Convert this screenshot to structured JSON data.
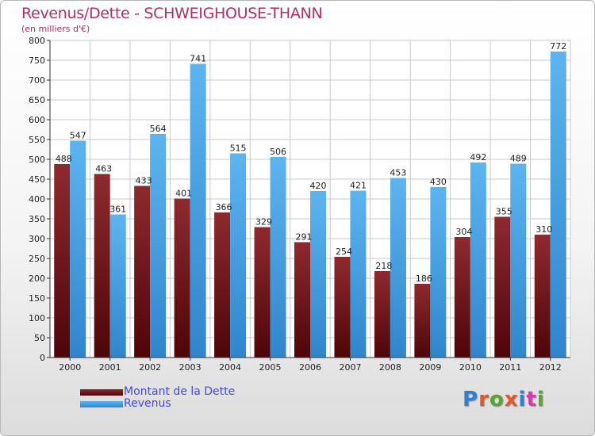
{
  "title": "Revenus/Dette - SCHWEIGHOUSE-THANN",
  "subtitle": "(en milliers d'€)",
  "legend": {
    "dette": "Montant de la Dette",
    "revenus": "Revenus"
  },
  "logo": {
    "text": "Proxiti",
    "colors": [
      "#2f7fd6",
      "#e8552a",
      "#5aa532",
      "#e8552a",
      "#2f7fd6",
      "#d63aa8",
      "#5aa532"
    ]
  },
  "colors": {
    "dette": "#6e1418",
    "revenus": "#4aa5e6",
    "title": "#b03063"
  },
  "chart_data": {
    "type": "bar",
    "categories": [
      "2000",
      "2001",
      "2002",
      "2003",
      "2004",
      "2005",
      "2006",
      "2007",
      "2008",
      "2009",
      "2010",
      "2011",
      "2012"
    ],
    "series": [
      {
        "name": "Montant de la Dette",
        "values": [
          488,
          463,
          433,
          401,
          366,
          329,
          291,
          254,
          218,
          186,
          304,
          355,
          310
        ]
      },
      {
        "name": "Revenus",
        "values": [
          547,
          361,
          564,
          741,
          515,
          506,
          420,
          421,
          453,
          430,
          492,
          489,
          772
        ]
      }
    ],
    "title": "Revenus/Dette - SCHWEIGHOUSE-THANN",
    "subtitle": "(en milliers d'€)",
    "ylim": [
      0,
      800
    ],
    "ytick_step": 50,
    "grid": true,
    "legend_position": "bottom-left"
  }
}
